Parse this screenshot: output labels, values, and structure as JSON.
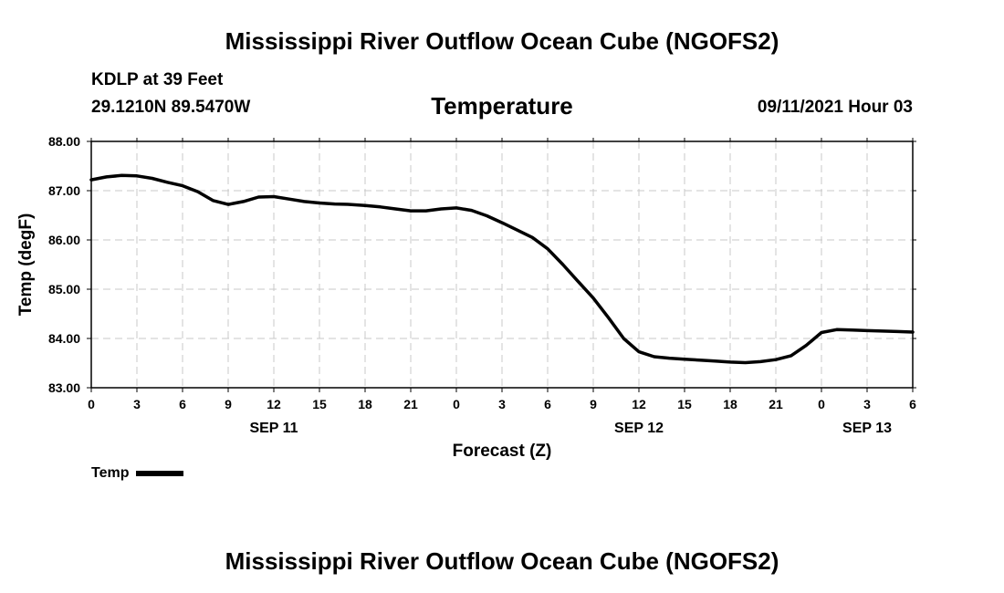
{
  "header": {
    "title": "Mississippi River Outflow Ocean Cube (NGOFS2)",
    "station": "KDLP at 39 Feet",
    "coords": "29.1210N  89.5470W",
    "parameter": "Temperature",
    "datetime": "09/11/2021 Hour 03"
  },
  "footer": {
    "title": "Mississippi River Outflow Ocean Cube (NGOFS2)"
  },
  "legend": {
    "label": "Temp"
  },
  "colors": {
    "line": "#000000",
    "grid": "#c8c8c8",
    "axis": "#000000"
  },
  "chart_data": {
    "type": "line",
    "title": "Temperature",
    "xlabel": "Forecast (Z)",
    "ylabel": "Temp (degF)",
    "xlim": [
      0,
      54
    ],
    "ylim": [
      83.0,
      88.0
    ],
    "grid": true,
    "legend_position": "bottom-left",
    "x_ticks": [
      0,
      3,
      6,
      9,
      12,
      15,
      18,
      21,
      24,
      27,
      30,
      33,
      36,
      39,
      42,
      45,
      48,
      51,
      54
    ],
    "x_tick_labels": [
      "0",
      "3",
      "6",
      "9",
      "12",
      "15",
      "18",
      "21",
      "0",
      "3",
      "6",
      "9",
      "12",
      "15",
      "18",
      "21",
      "0",
      "3",
      "6"
    ],
    "date_labels": [
      {
        "x": 12,
        "label": "SEP 11"
      },
      {
        "x": 36,
        "label": "SEP 12"
      },
      {
        "x": 51,
        "label": "SEP 13"
      }
    ],
    "y_ticks": [
      83.0,
      84.0,
      85.0,
      86.0,
      87.0,
      88.0
    ],
    "y_tick_labels": [
      "83.00",
      "84.00",
      "85.00",
      "86.00",
      "87.00",
      "88.00"
    ],
    "series": [
      {
        "name": "Temp",
        "x": [
          0,
          1,
          2,
          3,
          4,
          5,
          6,
          7,
          8,
          9,
          10,
          11,
          12,
          13,
          14,
          15,
          16,
          17,
          18,
          19,
          20,
          21,
          22,
          23,
          24,
          25,
          26,
          27,
          28,
          29,
          30,
          31,
          32,
          33,
          34,
          35,
          36,
          37,
          38,
          39,
          40,
          41,
          42,
          43,
          44,
          45,
          46,
          47,
          48,
          49,
          50,
          51,
          52,
          53,
          54
        ],
        "values": [
          87.22,
          87.28,
          87.31,
          87.3,
          87.25,
          87.17,
          87.1,
          86.98,
          86.8,
          86.72,
          86.78,
          86.87,
          86.88,
          86.83,
          86.78,
          86.75,
          86.73,
          86.72,
          86.7,
          86.67,
          86.63,
          86.59,
          86.59,
          86.63,
          86.65,
          86.6,
          86.49,
          86.35,
          86.2,
          86.05,
          85.82,
          85.5,
          85.16,
          84.82,
          84.42,
          84.0,
          83.73,
          83.63,
          83.6,
          83.58,
          83.56,
          83.54,
          83.52,
          83.51,
          83.53,
          83.57,
          83.65,
          83.86,
          84.12,
          84.18,
          84.17,
          84.16,
          84.15,
          84.14,
          84.13
        ]
      }
    ]
  }
}
